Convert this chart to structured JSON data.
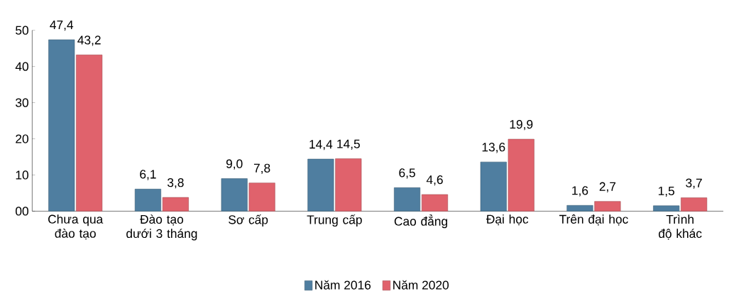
{
  "chart_data": {
    "type": "bar",
    "categories": [
      "Chưa qua đào tạo",
      "Đào tạo dưới 3 tháng",
      "Sơ cấp",
      "Trung cấp",
      "Cao đẳng",
      "Đại học",
      "Trên đại học",
      "Trình độ khác"
    ],
    "series": [
      {
        "name": "Năm 2016",
        "color": "#4f7ea0",
        "values": [
          47.4,
          6.1,
          9.0,
          14.4,
          6.5,
          13.6,
          1.6,
          1.5
        ],
        "value_labels": [
          "47,4",
          "6,1",
          "9,0",
          "14,4",
          "6,5",
          "13,6",
          "1,6",
          "1,5"
        ]
      },
      {
        "name": "Năm 2020",
        "color": "#e0626c",
        "values": [
          43.2,
          3.8,
          7.8,
          14.5,
          4.6,
          19.9,
          2.7,
          3.7
        ],
        "value_labels": [
          "43,2",
          "3,8",
          "7,8",
          "14,5",
          "4,6",
          "19,9",
          "2,7",
          "3,7"
        ]
      }
    ],
    "ylim": [
      0,
      50
    ],
    "yticks": [
      {
        "value": 0,
        "label": "00"
      },
      10,
      20,
      30,
      40,
      50
    ],
    "grid": false,
    "legend": "bottom"
  }
}
